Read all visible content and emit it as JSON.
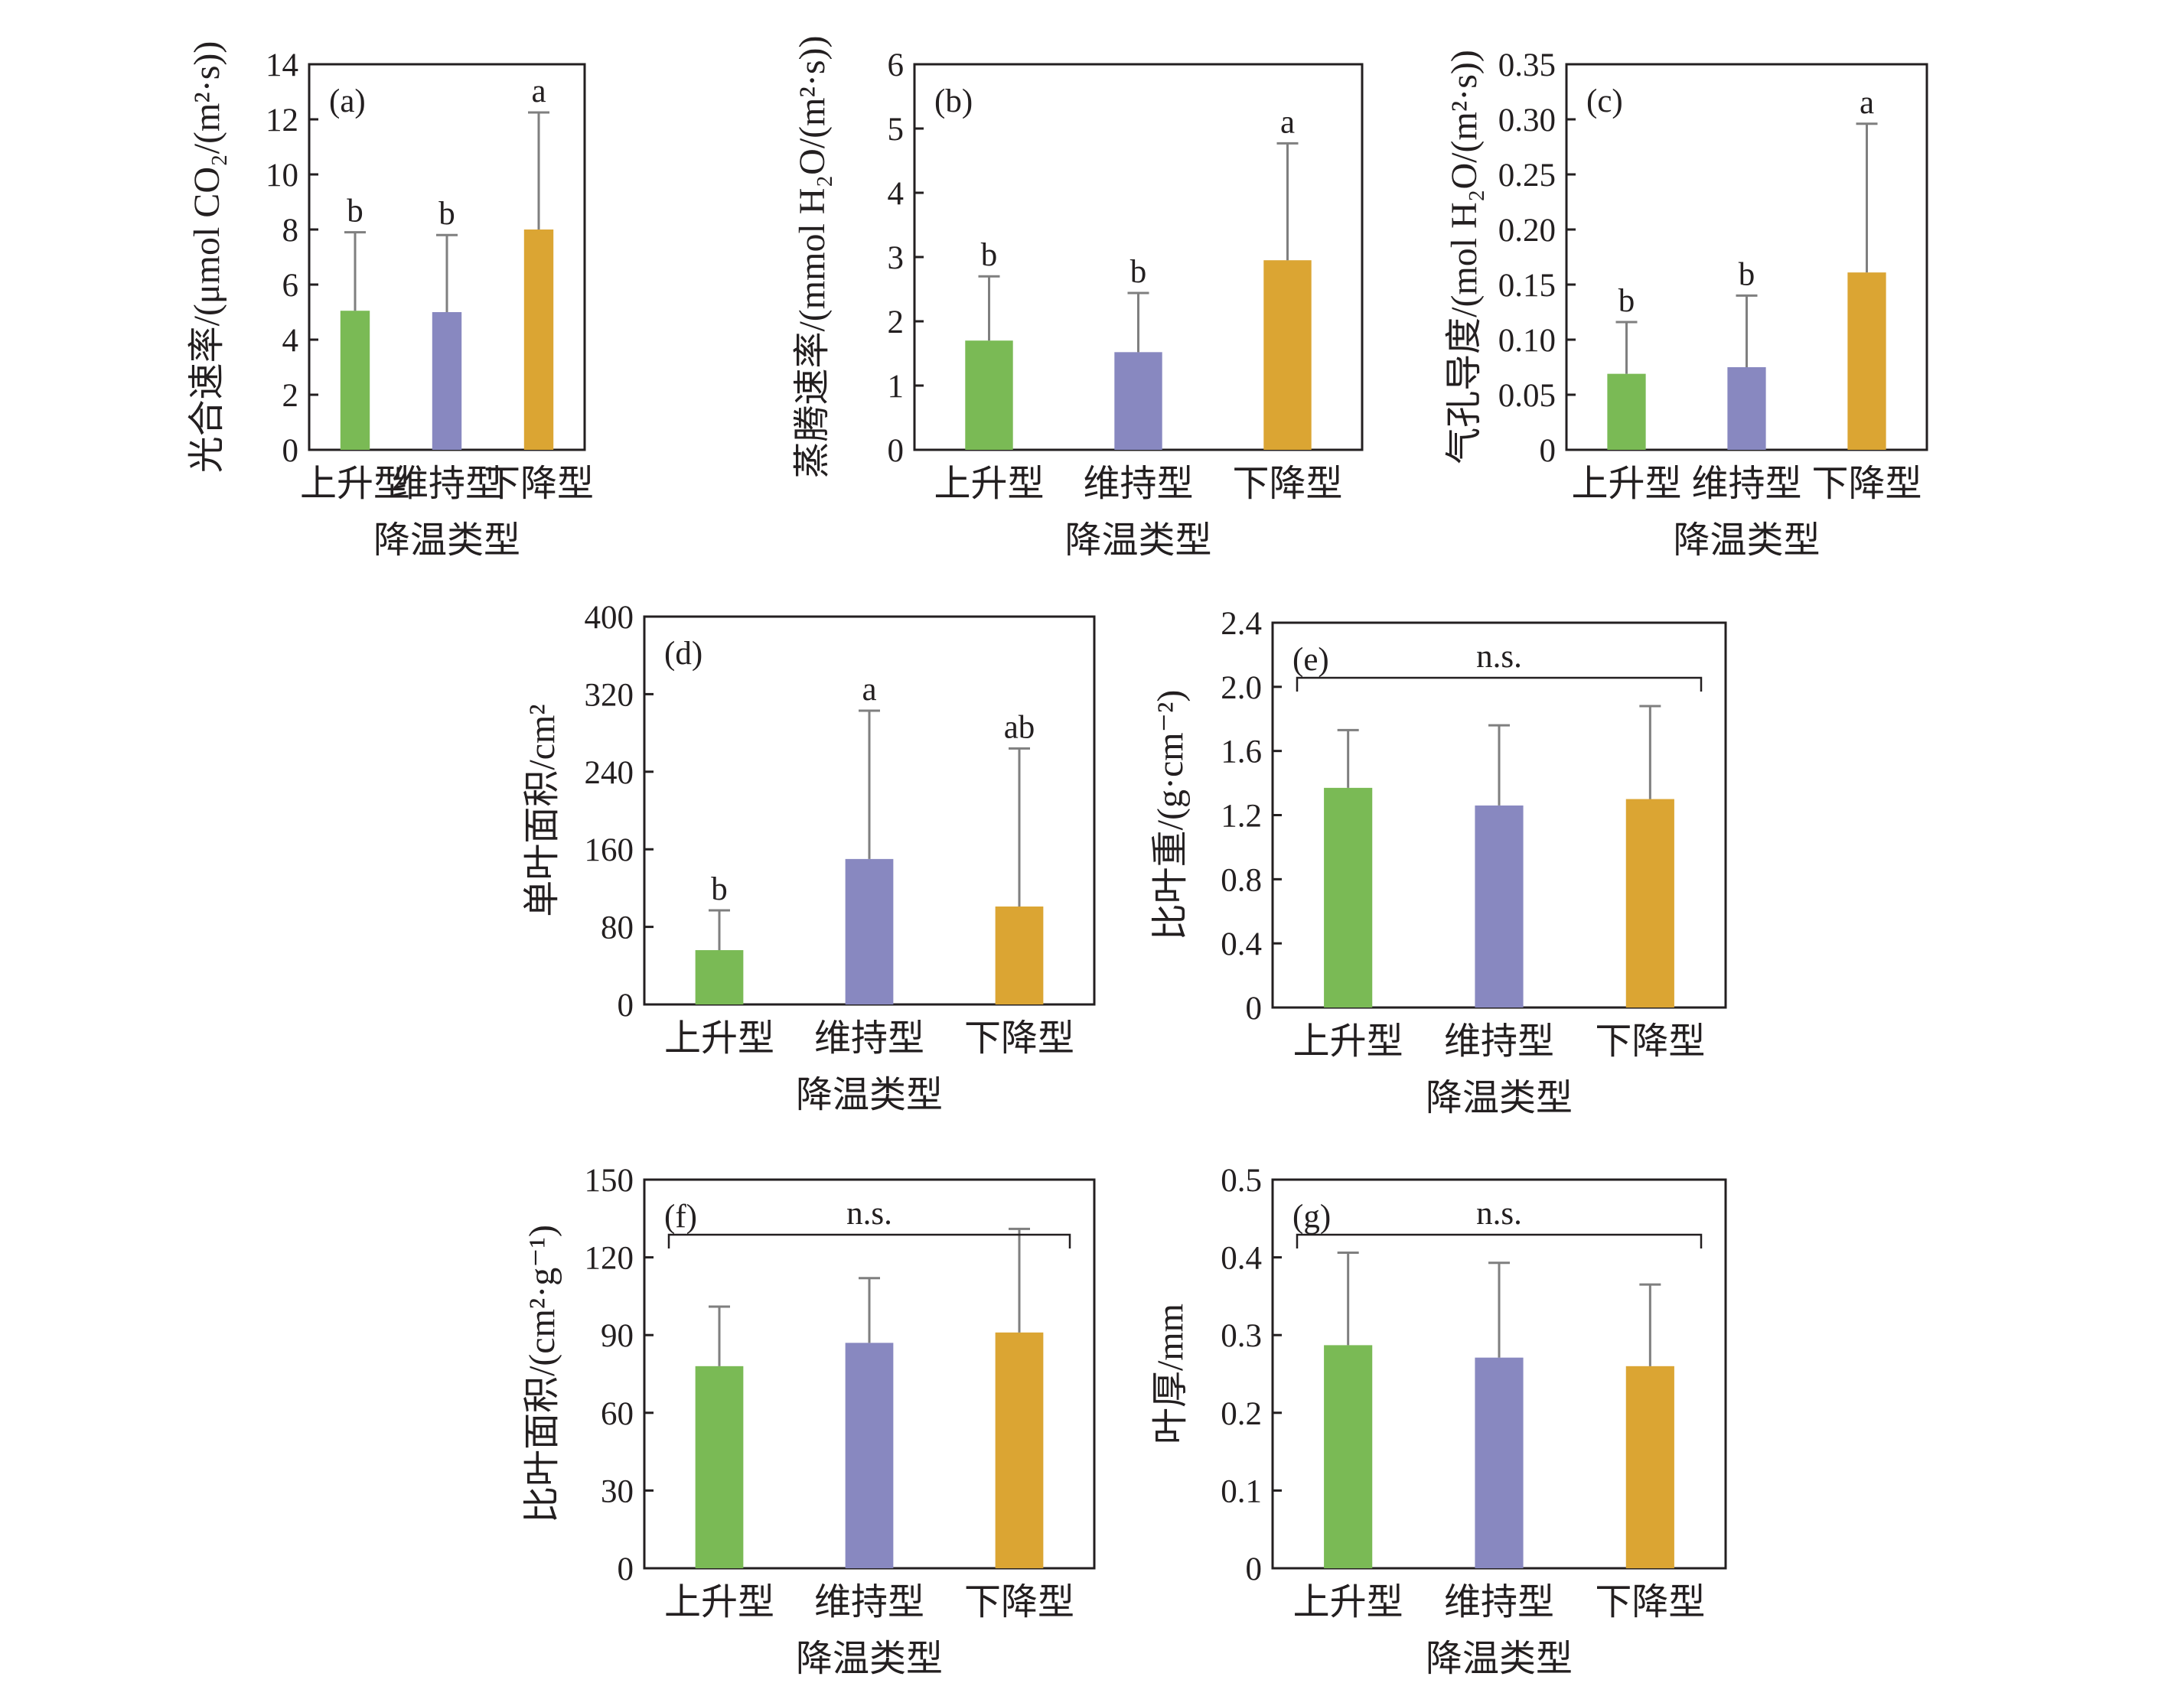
{
  "figure": {
    "xlabel": "降温类型",
    "categories": [
      "上升型",
      "维持型",
      "下降型"
    ],
    "colors": [
      "#7aba55",
      "#8888c0",
      "#dba533"
    ],
    "error_bar_color": "#7f7f7f",
    "frame_color": "#231f20"
  },
  "chart_data": [
    {
      "panel": "(a)",
      "type": "bar",
      "title": "",
      "ylabel": "光合速率/(μmol CO₂/(m²·s))",
      "xlabel": "降温类型",
      "categories": [
        "上升型",
        "维持型",
        "下降型"
      ],
      "values": [
        5.05,
        5.0,
        8.0
      ],
      "errors": [
        2.85,
        2.8,
        4.25
      ],
      "significance": [
        "b",
        "b",
        "a"
      ],
      "ylim": [
        0,
        14
      ],
      "yticks": [
        0,
        2,
        4,
        6,
        8,
        10,
        12,
        14
      ],
      "ytick_labels": [
        "0",
        "2",
        "4",
        "6",
        "8",
        "10",
        "12",
        "14"
      ],
      "bracket_label": null
    },
    {
      "panel": "(b)",
      "type": "bar",
      "title": "",
      "ylabel": "蒸腾速率/(mmol H₂O/(m²·s))",
      "xlabel": "降温类型",
      "categories": [
        "上升型",
        "维持型",
        "下降型"
      ],
      "values": [
        1.7,
        1.52,
        2.95
      ],
      "errors": [
        1.0,
        0.92,
        1.82
      ],
      "significance": [
        "b",
        "b",
        "a"
      ],
      "ylim": [
        0,
        6
      ],
      "yticks": [
        0,
        1,
        2,
        3,
        4,
        5,
        6
      ],
      "ytick_labels": [
        "0",
        "1",
        "2",
        "3",
        "4",
        "5",
        "6"
      ],
      "bracket_label": null
    },
    {
      "panel": "(c)",
      "type": "bar",
      "title": "",
      "ylabel": "气孔导度/(mol H₂O/(m²·s))",
      "xlabel": "降温类型",
      "categories": [
        "上升型",
        "维持型",
        "下降型"
      ],
      "values": [
        0.069,
        0.075,
        0.161
      ],
      "errors": [
        0.047,
        0.065,
        0.135
      ],
      "significance": [
        "b",
        "b",
        "a"
      ],
      "ylim": [
        0,
        0.35
      ],
      "yticks": [
        0,
        0.05,
        0.1,
        0.15,
        0.2,
        0.25,
        0.3,
        0.35
      ],
      "ytick_labels": [
        "0",
        "0.05",
        "0.10",
        "0.15",
        "0.20",
        "0.25",
        "0.30",
        "0.35"
      ],
      "bracket_label": null
    },
    {
      "panel": "(d)",
      "type": "bar",
      "title": "",
      "ylabel": "单叶面积/cm²",
      "xlabel": "降温类型",
      "categories": [
        "上升型",
        "维持型",
        "下降型"
      ],
      "values": [
        56,
        150,
        101
      ],
      "errors": [
        41,
        153,
        163
      ],
      "significance": [
        "b",
        "a",
        "ab"
      ],
      "ylim": [
        0,
        400
      ],
      "yticks": [
        0,
        80,
        160,
        240,
        320,
        400
      ],
      "ytick_labels": [
        "0",
        "80",
        "160",
        "240",
        "320",
        "400"
      ],
      "bracket_label": null
    },
    {
      "panel": "(e)",
      "type": "bar",
      "title": "",
      "ylabel": "比叶重/(g·cm⁻²)",
      "xlabel": "降温类型",
      "categories": [
        "上升型",
        "维持型",
        "下降型"
      ],
      "values": [
        1.37,
        1.26,
        1.3
      ],
      "errors": [
        0.36,
        0.5,
        0.58
      ],
      "significance": [
        "",
        "",
        ""
      ],
      "ylim": [
        0,
        2.4
      ],
      "yticks": [
        0,
        0.4,
        0.8,
        1.2,
        1.6,
        2.0,
        2.4
      ],
      "ytick_labels": [
        "0",
        "0.4",
        "0.8",
        "1.2",
        "1.6",
        "2.0",
        "2.4"
      ],
      "bracket_label": "n.s."
    },
    {
      "panel": "(f)",
      "type": "bar",
      "title": "",
      "ylabel": "比叶面积/(cm²·g⁻¹)",
      "xlabel": "降温类型",
      "categories": [
        "上升型",
        "维持型",
        "下降型"
      ],
      "values": [
        78,
        87,
        91
      ],
      "errors": [
        23,
        25,
        40
      ],
      "significance": [
        "",
        "",
        ""
      ],
      "ylim": [
        0,
        150
      ],
      "yticks": [
        0,
        30,
        60,
        90,
        120,
        150
      ],
      "ytick_labels": [
        "0",
        "30",
        "60",
        "90",
        "120",
        "150"
      ],
      "bracket_label": "n.s."
    },
    {
      "panel": "(g)",
      "type": "bar",
      "title": "",
      "ylabel": "叶厚/mm",
      "xlabel": "降温类型",
      "categories": [
        "上升型",
        "维持型",
        "下降型"
      ],
      "values": [
        0.287,
        0.271,
        0.26
      ],
      "errors": [
        0.119,
        0.122,
        0.105
      ],
      "significance": [
        "",
        "",
        ""
      ],
      "ylim": [
        0,
        0.5
      ],
      "yticks": [
        0,
        0.1,
        0.2,
        0.3,
        0.4,
        0.5
      ],
      "ytick_labels": [
        "0",
        "0.1",
        "0.2",
        "0.3",
        "0.4",
        "0.5"
      ],
      "bracket_label": "n.s."
    }
  ]
}
